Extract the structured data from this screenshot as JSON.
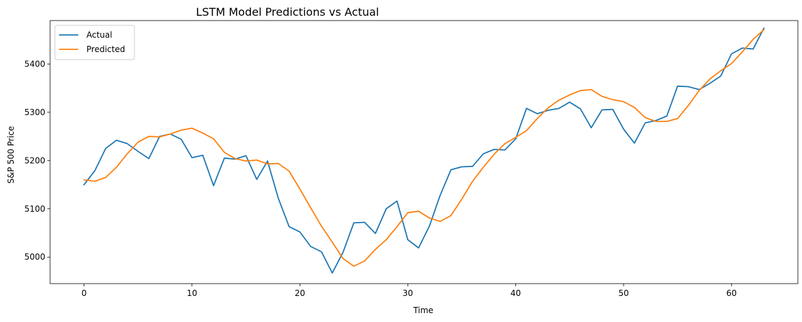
{
  "chart_data": {
    "type": "line",
    "title": "LSTM Model Predictions vs Actual",
    "xlabel": "Time",
    "ylabel": "S&P 500 Price",
    "xlim": [
      -3.15,
      66.15
    ],
    "ylim": [
      4945,
      5490
    ],
    "xticks": [
      0,
      10,
      20,
      30,
      40,
      50,
      60
    ],
    "yticks": [
      5000,
      5100,
      5200,
      5300,
      5400
    ],
    "grid": false,
    "legend_position": "top-left",
    "series": [
      {
        "name": "Actual",
        "color": "#1f77b4",
        "values": [
          5150,
          5179,
          5225,
          5242,
          5235,
          5219,
          5204,
          5250,
          5255,
          5244,
          5206,
          5211,
          5148,
          5205,
          5203,
          5210,
          5161,
          5199,
          5122,
          5063,
          5052,
          5022,
          5011,
          4967,
          5010,
          5071,
          5072,
          5049,
          5100,
          5116,
          5036,
          5019,
          5064,
          5128,
          5181,
          5187,
          5188,
          5214,
          5223,
          5222,
          5245,
          5308,
          5297,
          5304,
          5308,
          5321,
          5307,
          5268,
          5305,
          5306,
          5265,
          5236,
          5278,
          5283,
          5292,
          5354,
          5353,
          5347,
          5360,
          5375,
          5421,
          5433,
          5431,
          5474
        ]
      },
      {
        "name": "Predicted",
        "color": "#ff7f0e",
        "values": [
          5160,
          5157,
          5165,
          5186,
          5214,
          5238,
          5250,
          5249,
          5255,
          5263,
          5267,
          5257,
          5245,
          5217,
          5204,
          5199,
          5201,
          5193,
          5194,
          5178,
          5141,
          5102,
          5064,
          5031,
          4997,
          4981,
          4992,
          5016,
          5036,
          5063,
          5092,
          5095,
          5081,
          5074,
          5086,
          5120,
          5157,
          5186,
          5213,
          5235,
          5248,
          5262,
          5287,
          5309,
          5325,
          5336,
          5345,
          5347,
          5333,
          5326,
          5322,
          5310,
          5289,
          5281,
          5281,
          5287,
          5314,
          5345,
          5369,
          5386,
          5401,
          5425,
          5451,
          5471
        ]
      }
    ]
  }
}
